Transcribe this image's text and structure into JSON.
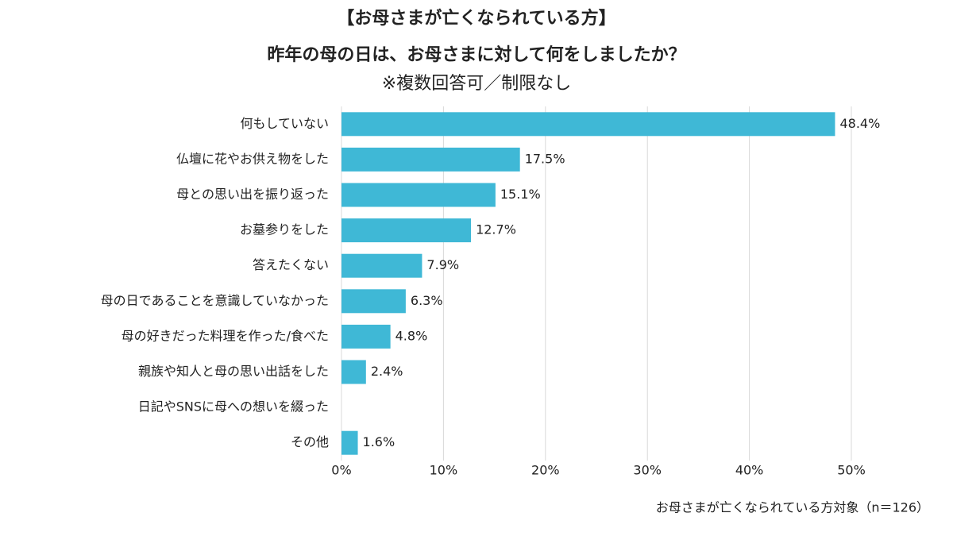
{
  "chart_data": {
    "type": "bar",
    "orientation": "horizontal",
    "title": "【お母さまが亡くなられている方】",
    "subtitle": "昨年の母の日は、お母さまに対して何をしましたか？",
    "note": "※複数回答可／制限なし",
    "footnote": "お母さまが亡くなられている方対象（n＝126）",
    "categories": [
      "何もしていない",
      "仏壇に花やお供え物をした",
      "母との思い出を振り返った",
      "お墓参りをした",
      "答えたくない",
      "母の日であることを意識していなかった",
      "母の好きだった料理を作った/食べた",
      "親族や知人と母の思い出話をした",
      "日記やSNSに母への想いを綴った",
      "その他"
    ],
    "values": [
      48.4,
      17.5,
      15.1,
      12.7,
      7.9,
      6.3,
      4.8,
      2.4,
      0,
      1.6
    ],
    "value_labels": [
      "48.4%",
      "17.5%",
      "15.1%",
      "12.7%",
      "7.9%",
      "6.3%",
      "4.8%",
      "2.4%",
      null,
      "1.6%"
    ],
    "color": "#3fb8d6",
    "xlim": [
      0,
      50
    ],
    "xticks": [
      {
        "value": 0,
        "label": "0%"
      },
      {
        "value": 10,
        "label": "10%"
      },
      {
        "value": 20,
        "label": "20%"
      },
      {
        "value": 30,
        "label": "30%"
      },
      {
        "value": 40,
        "label": "40%"
      },
      {
        "value": 50,
        "label": "50%"
      }
    ],
    "grid": true
  }
}
